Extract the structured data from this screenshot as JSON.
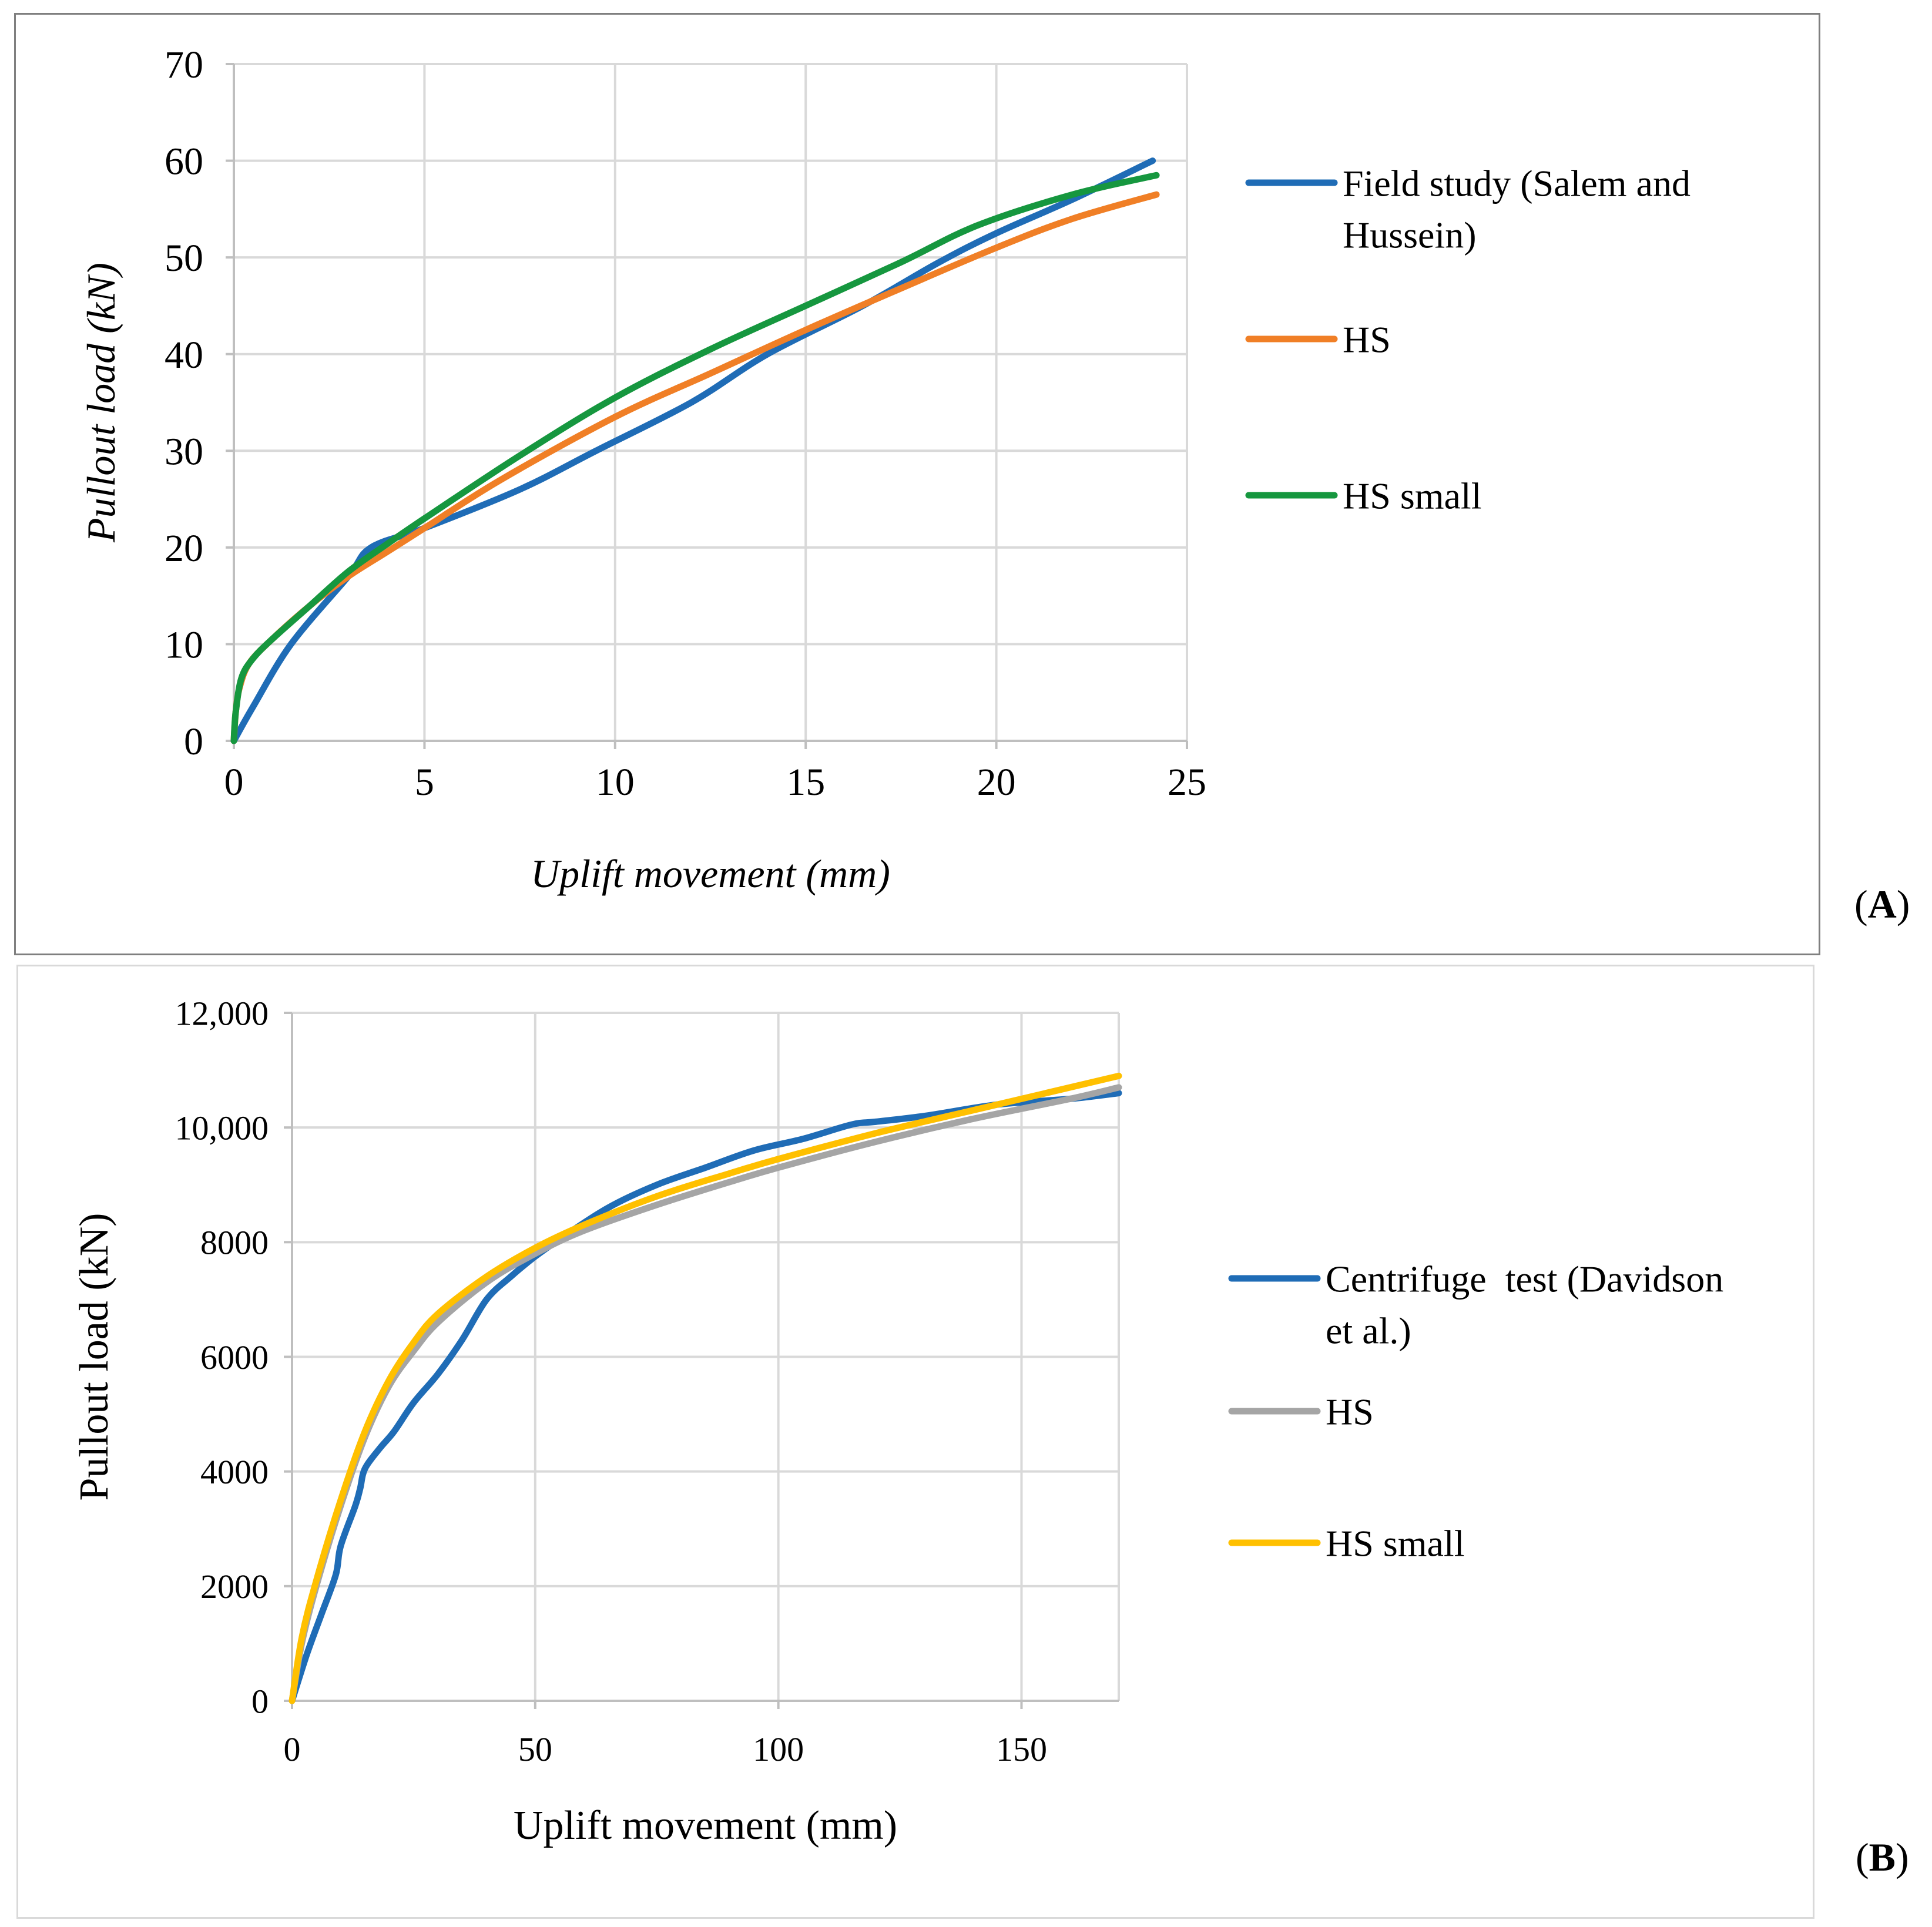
{
  "chart_data": [
    {
      "id": "A",
      "panel_label": "A",
      "type": "line",
      "title": "",
      "xlabel": "Uplift movement (mm)",
      "ylabel": "Pullout load (kN)",
      "xlim": [
        0,
        25
      ],
      "ylim": [
        0,
        70
      ],
      "xticks": [
        0,
        5,
        10,
        15,
        20,
        25
      ],
      "yticks": [
        0,
        10,
        20,
        30,
        40,
        50,
        60,
        70
      ],
      "ytick_labels": [
        "0",
        "10",
        "20",
        "30",
        "40",
        "50",
        "60",
        "70"
      ],
      "grid": true,
      "legend_position": "right",
      "series": [
        {
          "name": "Field study (Salem and Hussein)",
          "legend_lines": [
            "Field study (Salem and",
            "Hussein)"
          ],
          "color": "#1f6cb6",
          "points": [
            [
              0,
              0
            ],
            [
              0.5,
              3.5
            ],
            [
              1.5,
              10
            ],
            [
              3,
              17
            ],
            [
              3.6,
              20
            ],
            [
              5,
              22
            ],
            [
              7.5,
              26
            ],
            [
              9.5,
              30
            ],
            [
              12,
              35
            ],
            [
              14,
              40
            ],
            [
              16.5,
              45
            ],
            [
              18.5,
              49.5
            ],
            [
              20,
              52.5
            ],
            [
              22,
              56
            ],
            [
              24.1,
              60
            ]
          ]
        },
        {
          "name": "HS",
          "legend_lines": [
            "HS"
          ],
          "color": "#f07f26",
          "points": [
            [
              0,
              0
            ],
            [
              0.05,
              3
            ],
            [
              0.15,
              5.5
            ],
            [
              0.4,
              8
            ],
            [
              1,
              10.5
            ],
            [
              2,
              14
            ],
            [
              3,
              17
            ],
            [
              4,
              19.5
            ],
            [
              5,
              22
            ],
            [
              7,
              27
            ],
            [
              10,
              33.5
            ],
            [
              12.5,
              38
            ],
            [
              15,
              42.5
            ],
            [
              17.5,
              46.8
            ],
            [
              20,
              51
            ],
            [
              22,
              54
            ],
            [
              24.2,
              56.5
            ]
          ]
        },
        {
          "name": "HS small",
          "legend_lines": [
            "HS small"
          ],
          "color": "#16973f",
          "points": [
            [
              0,
              0
            ],
            [
              0.05,
              3
            ],
            [
              0.2,
              6.5
            ],
            [
              0.5,
              8.5
            ],
            [
              1,
              10.5
            ],
            [
              2,
              14
            ],
            [
              3,
              17.5
            ],
            [
              4,
              20.3
            ],
            [
              5,
              23
            ],
            [
              7.5,
              29.5
            ],
            [
              10,
              35.5
            ],
            [
              12.5,
              40.5
            ],
            [
              15,
              45
            ],
            [
              17.5,
              49.5
            ],
            [
              19.5,
              53.3
            ],
            [
              22,
              56.5
            ],
            [
              24.2,
              58.5
            ]
          ]
        }
      ]
    },
    {
      "id": "B",
      "panel_label": "B",
      "type": "line",
      "title": "",
      "xlabel": "Uplift movement (mm)",
      "ylabel": "Pullout load (kN)",
      "xlim": [
        0,
        170
      ],
      "ylim": [
        0,
        12000
      ],
      "xticks": [
        0,
        50,
        100,
        150
      ],
      "yticks": [
        0,
        2000,
        4000,
        6000,
        8000,
        10000,
        12000
      ],
      "ytick_labels": [
        "0",
        "2000",
        "4000",
        "6000",
        "8000",
        "10,000",
        "12,000"
      ],
      "grid": true,
      "legend_position": "right",
      "series": [
        {
          "name": "Centrifuge test (Davidson et al.)",
          "legend_lines": [
            "Centrifuge  test (Davidson",
            "et al.)"
          ],
          "color": "#1f6cb6",
          "points": [
            [
              0,
              0
            ],
            [
              3,
              800
            ],
            [
              6,
              1500
            ],
            [
              9,
              2200
            ],
            [
              10,
              2700
            ],
            [
              13,
              3400
            ],
            [
              14,
              3700
            ],
            [
              15,
              4050
            ],
            [
              18,
              4400
            ],
            [
              21,
              4700
            ],
            [
              25,
              5200
            ],
            [
              30,
              5700
            ],
            [
              35,
              6300
            ],
            [
              40,
              7000
            ],
            [
              45,
              7400
            ],
            [
              50,
              7750
            ],
            [
              55,
              8050
            ],
            [
              65,
              8600
            ],
            [
              75,
              9000
            ],
            [
              85,
              9300
            ],
            [
              95,
              9600
            ],
            [
              105,
              9800
            ],
            [
              115,
              10050
            ],
            [
              120,
              10100
            ],
            [
              130,
              10200
            ],
            [
              145,
              10400
            ],
            [
              160,
              10500
            ],
            [
              170,
              10600
            ]
          ]
        },
        {
          "name": "HS",
          "legend_lines": [
            "HS"
          ],
          "color": "#a5a5a5",
          "points": [
            [
              0,
              0
            ],
            [
              2,
              1000
            ],
            [
              5,
              2000
            ],
            [
              10,
              3400
            ],
            [
              15,
              4600
            ],
            [
              20,
              5500
            ],
            [
              25,
              6100
            ],
            [
              30,
              6600
            ],
            [
              40,
              7300
            ],
            [
              50,
              7800
            ],
            [
              60,
              8200
            ],
            [
              75,
              8650
            ],
            [
              90,
              9050
            ],
            [
              100,
              9300
            ],
            [
              120,
              9750
            ],
            [
              140,
              10150
            ],
            [
              160,
              10500
            ],
            [
              170,
              10700
            ]
          ]
        },
        {
          "name": "HS small",
          "legend_lines": [
            "HS small"
          ],
          "color": "#ffc000",
          "points": [
            [
              0,
              0
            ],
            [
              2,
              1100
            ],
            [
              5,
              2100
            ],
            [
              10,
              3500
            ],
            [
              15,
              4700
            ],
            [
              20,
              5600
            ],
            [
              25,
              6250
            ],
            [
              30,
              6750
            ],
            [
              40,
              7400
            ],
            [
              50,
              7900
            ],
            [
              60,
              8300
            ],
            [
              75,
              8800
            ],
            [
              90,
              9200
            ],
            [
              100,
              9450
            ],
            [
              120,
              9900
            ],
            [
              140,
              10300
            ],
            [
              160,
              10700
            ],
            [
              170,
              10900
            ]
          ]
        }
      ]
    }
  ]
}
